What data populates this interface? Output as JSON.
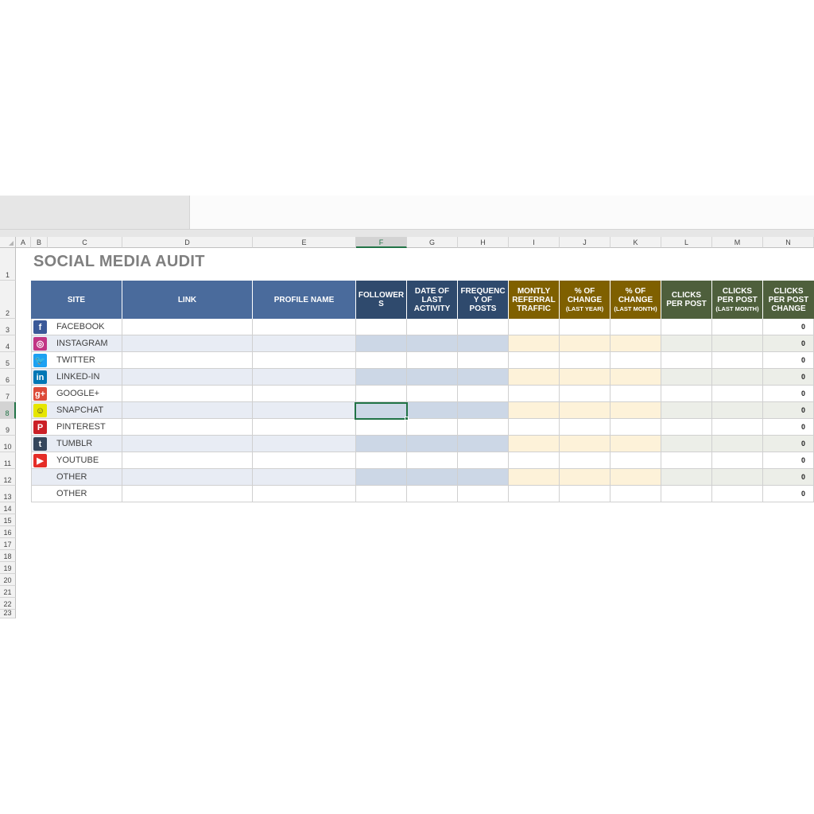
{
  "columns": [
    "A",
    "B",
    "C",
    "D",
    "E",
    "F",
    "G",
    "H",
    "I",
    "J",
    "K",
    "L",
    "M",
    "N"
  ],
  "rows": [
    "1",
    "2",
    "3",
    "4",
    "5",
    "6",
    "7",
    "8",
    "9",
    "10",
    "11",
    "12",
    "13",
    "14",
    "15",
    "16",
    "17",
    "18",
    "19",
    "20",
    "21",
    "22",
    "23"
  ],
  "title": "SOCIAL MEDIA AUDIT",
  "headers": {
    "site": "SITE",
    "link": "LINK",
    "profile_name": "PROFILE NAME",
    "followers": "FOLLOWER S",
    "date_of_last_activity": "DATE OF LAST ACTIVITY",
    "frequency_of_posts": "FREQUENC Y OF POSTS",
    "monthly_referral_traffic": "MONTLY REFERRAL TRAFFIC",
    "pct_change_year": "% OF CHANGE",
    "pct_change_year_sub": "(LAST YEAR)",
    "pct_change_month": "% OF CHANGE",
    "pct_change_month_sub": "(LAST MONTH)",
    "clicks_per_post": "CLICKS PER POST",
    "clicks_per_post_last_month": "CLICKS PER POST",
    "clicks_per_post_last_month_sub": "(LAST MONTH)",
    "clicks_per_post_change": "CLICKS PER POST CHANGE"
  },
  "sites": [
    {
      "label": "FACEBOOK",
      "icon": "facebook-icon",
      "glyph": "f",
      "color": "#3b5998",
      "clicks_change": "0"
    },
    {
      "label": "INSTAGRAM",
      "icon": "instagram-icon",
      "glyph": "◎",
      "color": "#c13584",
      "clicks_change": "0"
    },
    {
      "label": "TWITTER",
      "icon": "twitter-icon",
      "glyph": "🐦",
      "color": "#1da1f2",
      "clicks_change": "0"
    },
    {
      "label": "LINKED-IN",
      "icon": "linkedin-icon",
      "glyph": "in",
      "color": "#0077b5",
      "clicks_change": "0"
    },
    {
      "label": "GOOGLE+",
      "icon": "google-plus-icon",
      "glyph": "g+",
      "color": "#dd4b39",
      "clicks_change": "0"
    },
    {
      "label": "SNAPCHAT",
      "icon": "snapchat-icon",
      "glyph": "☺",
      "color": "#e6e600",
      "clicks_change": "0"
    },
    {
      "label": "PINTEREST",
      "icon": "pinterest-icon",
      "glyph": "P",
      "color": "#cb2027",
      "clicks_change": "0"
    },
    {
      "label": "TUMBLR",
      "icon": "tumblr-icon",
      "glyph": "t",
      "color": "#35465c",
      "clicks_change": "0"
    },
    {
      "label": "YOUTUBE",
      "icon": "youtube-icon",
      "glyph": "▶",
      "color": "#e52d27",
      "clicks_change": "0"
    },
    {
      "label": "OTHER",
      "icon": "",
      "glyph": "",
      "color": "",
      "clicks_change": "0"
    },
    {
      "label": "OTHER",
      "icon": "",
      "glyph": "",
      "color": "",
      "clicks_change": "0"
    }
  ],
  "colors": {
    "header_blue": "#4a6b9c",
    "header_navy": "#2f4a6d",
    "header_gold": "#7f6000",
    "header_olive": "#4e5f3c",
    "band_blue_light": "#e8ecf4",
    "band_blue_mid": "#ccd7e6",
    "band_gold_light": "#fdf2d9",
    "band_olive_light": "#eceee8",
    "selection": "#217346"
  }
}
